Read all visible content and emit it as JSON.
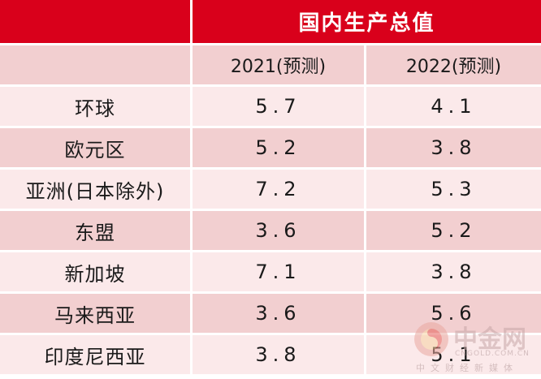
{
  "table": {
    "title": "国内生产总值",
    "columns": [
      "2021(预测)",
      "2022(预测)"
    ],
    "rows": [
      {
        "region": "环球",
        "y2021": "5.7",
        "y2022": "4.1"
      },
      {
        "region": "欧元区",
        "y2021": "5.2",
        "y2022": "3.8"
      },
      {
        "region": "亚洲(日本除外)",
        "y2021": "7.2",
        "y2022": "5.3"
      },
      {
        "region": "东盟",
        "y2021": "3.6",
        "y2022": "5.2"
      },
      {
        "region": "新加坡",
        "y2021": "7.1",
        "y2022": "3.8"
      },
      {
        "region": "马来西亚",
        "y2021": "3.6",
        "y2022": "5.6"
      },
      {
        "region": "印度尼西亚",
        "y2021": "3.8",
        "y2022": "5.1"
      }
    ]
  },
  "watermark": {
    "name": "中金网",
    "url": "CNGOLD.COM.CN",
    "tagline": "中文财经新媒体"
  },
  "colors": {
    "header": "#d9001b",
    "row_light": "#fbe9ea",
    "row_dark": "#f2cfd0"
  }
}
